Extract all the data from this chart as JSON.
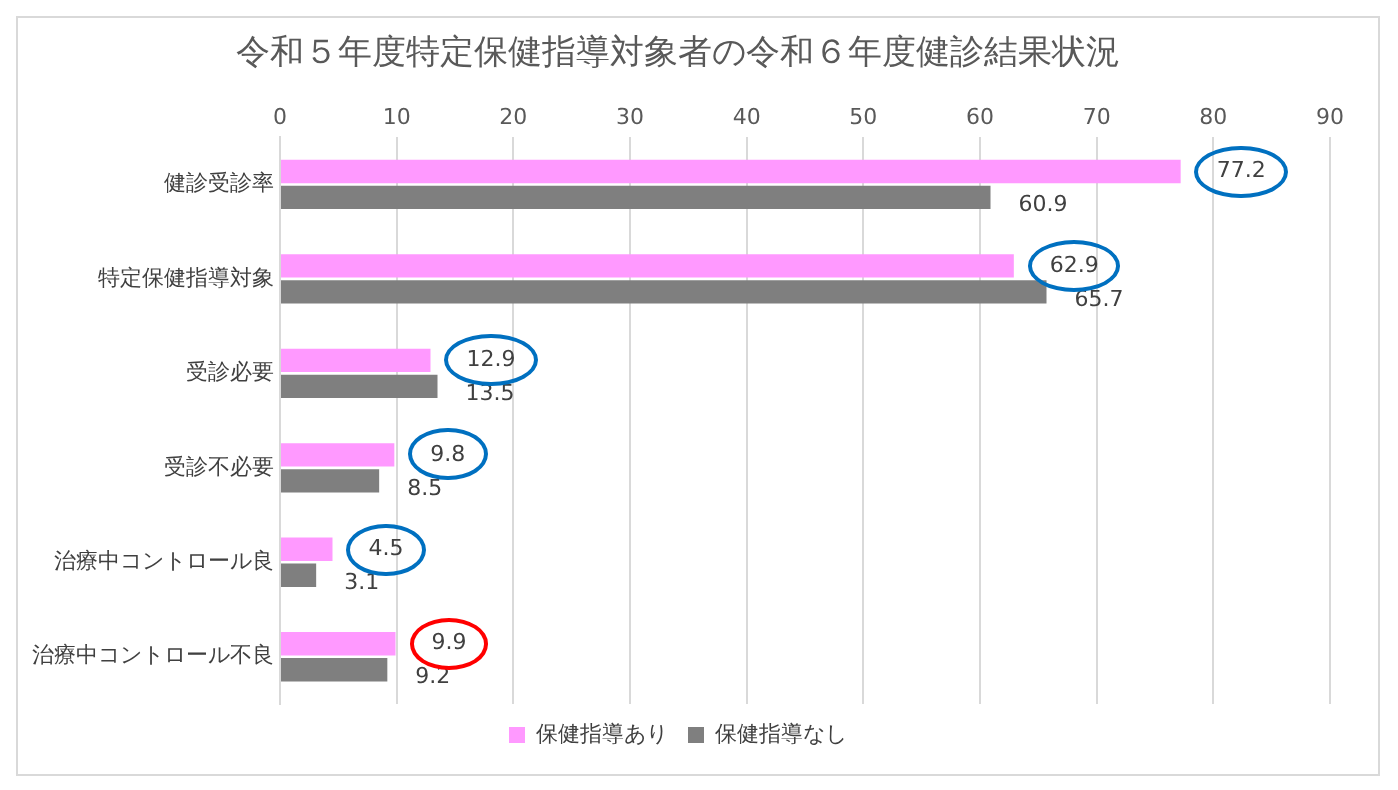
{
  "chart_data": {
    "type": "bar",
    "orientation": "horizontal",
    "title": "令和５年度特定保健指導対象者の令和６年度健診結果状況",
    "categories": [
      "健診受診率",
      "特定保健指導対象",
      "受診必要",
      "受診不必要",
      "治療中コントロール良",
      "治療中コントロール不良"
    ],
    "series": [
      {
        "name": "保健指導あり",
        "color": "#ff99ff",
        "values": [
          77.2,
          62.9,
          12.9,
          9.8,
          4.5,
          9.9
        ]
      },
      {
        "name": "保健指導なし",
        "color": "#7f7f7f",
        "values": [
          60.9,
          65.7,
          13.5,
          8.5,
          3.1,
          9.2
        ]
      }
    ],
    "xlim": [
      0,
      90
    ],
    "xticks": [
      0,
      10,
      20,
      30,
      40,
      50,
      60,
      70,
      80,
      90
    ],
    "grid": "x",
    "legend": "bottom",
    "data_labels": true
  }
}
